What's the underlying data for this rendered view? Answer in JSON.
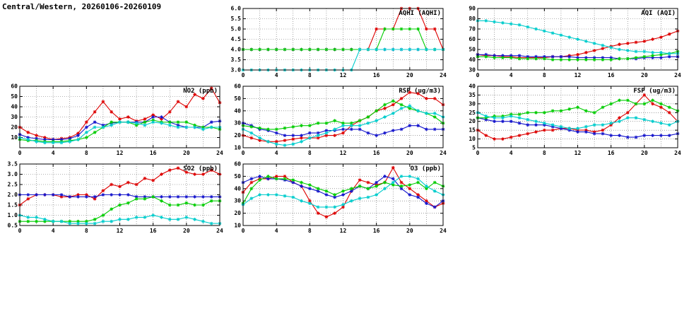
{
  "title": "Central/Western, 20260106-20260109",
  "colors": {
    "red": "#dd0000",
    "blue": "#1515cc",
    "green": "#00cc00",
    "cyan": "#00cccc"
  },
  "chart_data": [
    {
      "id": "aqhi",
      "type": "line",
      "title": "AQHI (AQHI)",
      "xlim": [
        0,
        24
      ],
      "xticks": [
        0,
        4,
        8,
        12,
        16,
        20,
        24
      ],
      "ylim": [
        3.0,
        6.0
      ],
      "yticks": [
        "3.0",
        "3.5",
        "4.0",
        "4.5",
        "5.0",
        "5.5",
        "6.0"
      ],
      "grid": "dotted",
      "legend": "none",
      "series": [
        {
          "name": "red",
          "color": "#dd0000",
          "values": [
            4,
            4,
            4,
            4,
            4,
            4,
            4,
            4,
            4,
            4,
            4,
            4,
            4,
            4,
            4,
            4,
            5,
            5,
            5,
            6,
            6,
            6,
            5,
            5,
            4
          ]
        },
        {
          "name": "blue",
          "color": "#1515cc",
          "values": [
            4,
            4,
            4,
            4,
            4,
            4,
            4,
            4,
            4,
            4,
            4,
            4,
            4,
            4,
            4,
            4,
            4,
            4,
            4,
            4,
            4,
            4,
            4,
            4,
            4
          ]
        },
        {
          "name": "green",
          "color": "#00cc00",
          "values": [
            4,
            4,
            4,
            4,
            4,
            4,
            4,
            4,
            4,
            4,
            4,
            4,
            4,
            4,
            4,
            4,
            4,
            5,
            5,
            5,
            5,
            5,
            4,
            4,
            4
          ]
        },
        {
          "name": "cyan",
          "color": "#00cccc",
          "values": [
            3,
            3,
            3,
            3,
            3,
            3,
            3,
            3,
            3,
            3,
            3,
            3,
            3,
            3,
            4,
            4,
            4,
            4,
            4,
            4,
            4,
            4,
            4,
            4,
            4
          ]
        }
      ]
    },
    {
      "id": "aqi",
      "type": "line",
      "title": "AQI (AQI)",
      "xlim": [
        0,
        24
      ],
      "xticks": [
        0,
        4,
        8,
        12,
        16,
        20,
        24
      ],
      "ylim": [
        30,
        90
      ],
      "yticks": [
        "30",
        "40",
        "50",
        "60",
        "70",
        "80",
        "90"
      ],
      "grid": "dotted",
      "legend": "none",
      "series": [
        {
          "name": "red",
          "color": "#dd0000",
          "values": [
            45,
            44,
            44,
            43,
            43,
            42,
            42,
            42,
            42,
            43,
            43,
            44,
            45,
            47,
            49,
            51,
            53,
            55,
            56,
            57,
            58,
            60,
            62,
            65,
            68
          ]
        },
        {
          "name": "blue",
          "color": "#1515cc",
          "values": [
            45,
            45,
            44,
            44,
            44,
            44,
            43,
            43,
            43,
            43,
            43,
            43,
            42,
            42,
            42,
            42,
            42,
            41,
            41,
            41,
            42,
            42,
            42,
            43,
            43
          ]
        },
        {
          "name": "green",
          "color": "#00cc00",
          "values": [
            43,
            43,
            42,
            42,
            42,
            41,
            41,
            41,
            41,
            40,
            40,
            40,
            40,
            40,
            40,
            40,
            40,
            41,
            41,
            42,
            43,
            44,
            45,
            46,
            48
          ]
        },
        {
          "name": "cyan",
          "color": "#00cccc",
          "values": [
            78,
            78,
            77,
            76,
            75,
            74,
            72,
            70,
            68,
            66,
            64,
            62,
            60,
            58,
            56,
            54,
            52,
            50,
            49,
            48,
            48,
            47,
            47,
            46,
            46
          ]
        }
      ]
    },
    {
      "id": "no2",
      "type": "line",
      "title": "NO2 (ppb)",
      "xlim": [
        0,
        24
      ],
      "xticks": [
        0,
        4,
        8,
        12,
        16,
        20,
        24
      ],
      "ylim": [
        0,
        60
      ],
      "yticks": [
        "10",
        "20",
        "30",
        "40",
        "50",
        "60"
      ],
      "grid": "dotted",
      "legend": "none",
      "series": [
        {
          "name": "red",
          "color": "#dd0000",
          "values": [
            20,
            15,
            12,
            10,
            8,
            9,
            10,
            14,
            25,
            35,
            45,
            35,
            28,
            30,
            26,
            28,
            32,
            28,
            35,
            45,
            40,
            52,
            48,
            58,
            44
          ]
        },
        {
          "name": "blue",
          "color": "#1515cc",
          "values": [
            13,
            10,
            9,
            8,
            8,
            8,
            9,
            12,
            20,
            25,
            22,
            24,
            25,
            25,
            25,
            25,
            30,
            30,
            25,
            22,
            20,
            20,
            20,
            25,
            26
          ]
        },
        {
          "name": "green",
          "color": "#00cc00",
          "values": [
            8,
            7,
            7,
            6,
            6,
            6,
            7,
            8,
            10,
            15,
            20,
            25,
            25,
            25,
            22,
            25,
            27,
            25,
            25,
            25,
            25,
            22,
            20,
            20,
            18
          ]
        },
        {
          "name": "cyan",
          "color": "#00cccc",
          "values": [
            10,
            8,
            6,
            5,
            5,
            5,
            6,
            8,
            15,
            20,
            20,
            22,
            25,
            25,
            24,
            22,
            25,
            24,
            22,
            20,
            20,
            20,
            18,
            20,
            20
          ]
        }
      ]
    },
    {
      "id": "rsp",
      "type": "line",
      "title": "RSP (ug/m3)",
      "xlim": [
        0,
        24
      ],
      "xticks": [
        0,
        4,
        8,
        12,
        16,
        20,
        24
      ],
      "ylim": [
        10,
        60
      ],
      "yticks": [
        "10",
        "20",
        "30",
        "40",
        "50",
        "60"
      ],
      "grid": "dotted",
      "legend": "none",
      "series": [
        {
          "name": "red",
          "color": "#dd0000",
          "values": [
            20,
            18,
            16,
            15,
            15,
            16,
            17,
            18,
            18,
            18,
            20,
            20,
            22,
            28,
            32,
            35,
            40,
            42,
            45,
            50,
            55,
            54,
            50,
            50,
            45
          ]
        },
        {
          "name": "blue",
          "color": "#1515cc",
          "values": [
            30,
            28,
            25,
            24,
            22,
            20,
            20,
            20,
            22,
            22,
            24,
            24,
            25,
            25,
            25,
            22,
            20,
            22,
            24,
            25,
            28,
            28,
            25,
            25,
            25
          ]
        },
        {
          "name": "green",
          "color": "#00cc00",
          "values": [
            28,
            27,
            26,
            25,
            25,
            26,
            27,
            28,
            28,
            30,
            30,
            32,
            30,
            30,
            32,
            35,
            40,
            45,
            48,
            45,
            42,
            40,
            38,
            35,
            30
          ]
        },
        {
          "name": "cyan",
          "color": "#00cccc",
          "values": [
            25,
            22,
            18,
            15,
            13,
            12,
            13,
            15,
            18,
            20,
            22,
            25,
            28,
            28,
            28,
            30,
            32,
            35,
            38,
            42,
            44,
            40,
            38,
            38,
            35
          ]
        }
      ]
    },
    {
      "id": "fsp",
      "type": "line",
      "title": "FSP (ug/m3)",
      "xlim": [
        0,
        24
      ],
      "xticks": [
        0,
        4,
        8,
        12,
        16,
        20,
        24
      ],
      "ylim": [
        5,
        40
      ],
      "yticks": [
        "5",
        "10",
        "15",
        "20",
        "25",
        "30",
        "35",
        "40"
      ],
      "grid": "dotted",
      "legend": "none",
      "series": [
        {
          "name": "red",
          "color": "#dd0000",
          "values": [
            15,
            12,
            10,
            10,
            11,
            12,
            13,
            14,
            15,
            15,
            16,
            16,
            15,
            15,
            14,
            15,
            18,
            22,
            25,
            30,
            35,
            30,
            28,
            25,
            20
          ]
        },
        {
          "name": "blue",
          "color": "#1515cc",
          "values": [
            22,
            21,
            20,
            20,
            20,
            19,
            18,
            18,
            18,
            17,
            16,
            15,
            14,
            14,
            13,
            13,
            12,
            12,
            11,
            11,
            12,
            12,
            12,
            12,
            13
          ]
        },
        {
          "name": "green",
          "color": "#00cc00",
          "values": [
            22,
            22,
            23,
            23,
            24,
            24,
            25,
            25,
            25,
            26,
            26,
            27,
            28,
            26,
            25,
            28,
            30,
            32,
            32,
            30,
            30,
            32,
            30,
            28,
            26
          ]
        },
        {
          "name": "cyan",
          "color": "#00cccc",
          "values": [
            25,
            23,
            22,
            22,
            23,
            22,
            21,
            20,
            19,
            18,
            17,
            16,
            16,
            17,
            18,
            18,
            19,
            20,
            22,
            22,
            21,
            20,
            19,
            18,
            20
          ]
        }
      ]
    },
    {
      "id": "so2",
      "type": "line",
      "title": "SO2 (ppb)",
      "xlim": [
        0,
        24
      ],
      "xticks": [
        0,
        4,
        8,
        12,
        16,
        20,
        24
      ],
      "ylim": [
        0.5,
        3.5
      ],
      "yticks": [
        "0.5",
        "1.0",
        "1.5",
        "2.0",
        "2.5",
        "3.0",
        "3.5"
      ],
      "grid": "dotted",
      "legend": "none",
      "series": [
        {
          "name": "red",
          "color": "#dd0000",
          "values": [
            1.5,
            1.8,
            2.0,
            2.0,
            2.0,
            1.9,
            1.9,
            2.0,
            2.0,
            1.8,
            2.2,
            2.5,
            2.4,
            2.6,
            2.5,
            2.8,
            2.7,
            3.0,
            3.2,
            3.3,
            3.1,
            3.0,
            3.0,
            3.2,
            3.0
          ]
        },
        {
          "name": "blue",
          "color": "#1515cc",
          "values": [
            2.0,
            2.0,
            2.0,
            2.0,
            2.0,
            2.0,
            1.9,
            1.9,
            1.9,
            1.9,
            2.0,
            2.0,
            2.0,
            2.0,
            1.9,
            1.9,
            1.9,
            1.9,
            1.9,
            1.9,
            1.9,
            1.9,
            1.9,
            1.9,
            1.9
          ]
        },
        {
          "name": "green",
          "color": "#00cc00",
          "values": [
            0.7,
            0.7,
            0.7,
            0.7,
            0.7,
            0.7,
            0.7,
            0.7,
            0.7,
            0.8,
            1.0,
            1.3,
            1.5,
            1.6,
            1.8,
            1.8,
            1.9,
            1.7,
            1.5,
            1.5,
            1.6,
            1.5,
            1.5,
            1.7,
            1.7
          ]
        },
        {
          "name": "cyan",
          "color": "#00cccc",
          "values": [
            1.0,
            0.9,
            0.9,
            0.8,
            0.7,
            0.7,
            0.6,
            0.6,
            0.6,
            0.6,
            0.7,
            0.7,
            0.8,
            0.8,
            0.9,
            0.9,
            1.0,
            0.9,
            0.8,
            0.8,
            0.9,
            0.8,
            0.7,
            0.6,
            0.6
          ]
        }
      ]
    },
    {
      "id": "o3",
      "type": "line",
      "title": "O3 (ppb)",
      "xlim": [
        0,
        24
      ],
      "xticks": [
        0,
        4,
        8,
        12,
        16,
        20,
        24
      ],
      "ylim": [
        10,
        60
      ],
      "yticks": [
        "10",
        "20",
        "30",
        "40",
        "50",
        "60"
      ],
      "grid": "dotted",
      "legend": "none",
      "series": [
        {
          "name": "red",
          "color": "#dd0000",
          "values": [
            37,
            45,
            48,
            48,
            50,
            50,
            45,
            42,
            30,
            20,
            17,
            20,
            25,
            38,
            47,
            45,
            43,
            45,
            57,
            45,
            40,
            35,
            30,
            25,
            28
          ]
        },
        {
          "name": "blue",
          "color": "#1515cc",
          "values": [
            45,
            48,
            50,
            48,
            48,
            47,
            45,
            42,
            40,
            38,
            35,
            33,
            35,
            38,
            42,
            40,
            45,
            50,
            48,
            40,
            35,
            33,
            28,
            25,
            30
          ]
        },
        {
          "name": "green",
          "color": "#00cc00",
          "values": [
            28,
            40,
            47,
            50,
            48,
            48,
            47,
            45,
            43,
            40,
            38,
            35,
            38,
            40,
            42,
            40,
            42,
            45,
            43,
            42,
            43,
            45,
            40,
            45,
            42
          ]
        },
        {
          "name": "cyan",
          "color": "#00cccc",
          "values": [
            27,
            32,
            35,
            35,
            35,
            34,
            33,
            30,
            28,
            25,
            25,
            25,
            27,
            30,
            32,
            33,
            35,
            40,
            45,
            50,
            50,
            48,
            42,
            38,
            35
          ]
        }
      ]
    }
  ]
}
